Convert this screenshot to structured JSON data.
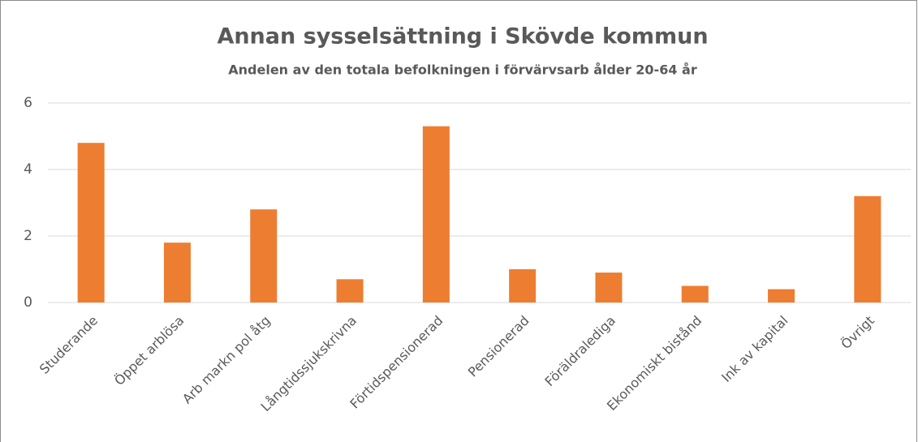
{
  "chart_data": {
    "type": "bar",
    "title": "Annan sysselsättning i Skövde kommun",
    "subtitle": "Andelen av den totala befolkningen i förvärvsarb ålder 20-64 år",
    "categories": [
      "Studerande",
      "Öppet arblösa",
      "Arb markn pol åtg",
      "Långtidssjukskrivna",
      "Förtidspensionerad",
      "Pensionerad",
      "Föräldralediga",
      "Ekonomiskt bistånd",
      "Ink av kapital",
      "Övrigt"
    ],
    "values": [
      4.8,
      1.8,
      2.8,
      0.7,
      5.3,
      1.0,
      0.9,
      0.5,
      0.4,
      3.2
    ],
    "color": "#ed7d31",
    "ylim": [
      0,
      6
    ],
    "yticks": [
      0,
      2,
      4,
      6
    ],
    "grid": true
  }
}
